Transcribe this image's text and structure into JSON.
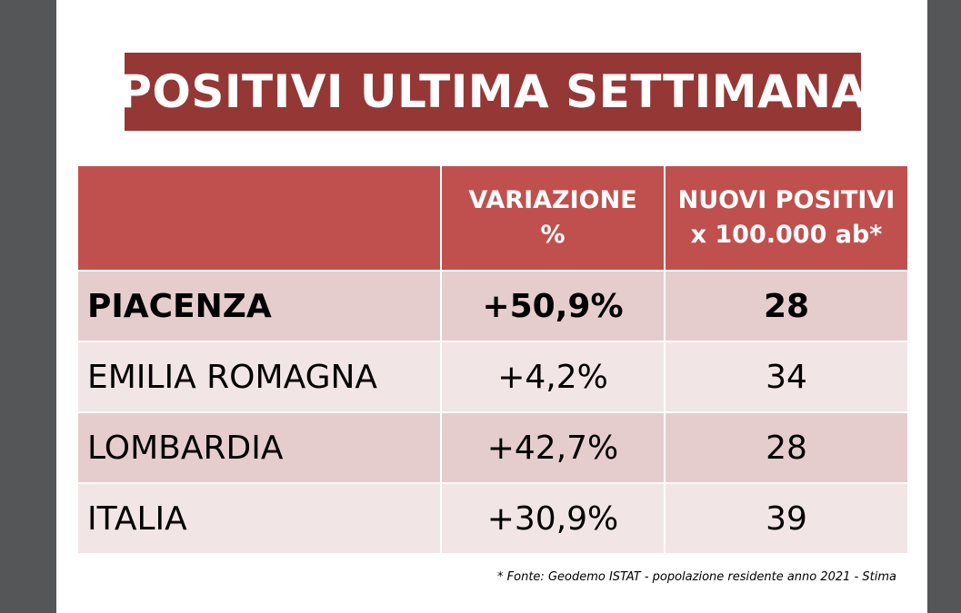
{
  "title": "POSITIVI ULTIMA SETTIMANA",
  "table": {
    "headers": {
      "region": "",
      "variation_line1": "VARIAZIONE",
      "variation_line2": "%",
      "new_cases_line1": "NUOVI POSITIVI",
      "new_cases_line2": "x 100.000 ab*"
    },
    "rows": [
      {
        "region": "PIACENZA",
        "variation": "+50,9%",
        "new_cases": "28"
      },
      {
        "region": "EMILIA ROMAGNA",
        "variation": "+4,2%",
        "new_cases": "34"
      },
      {
        "region": "LOMBARDIA",
        "variation": "+42,7%",
        "new_cases": "28"
      },
      {
        "region": "ITALIA",
        "variation": "+30,9%",
        "new_cases": "39"
      }
    ]
  },
  "footnote": "* Fonte: Geodemo ISTAT - popolazione residente anno 2021 - Stima",
  "colors": {
    "title_bg": "#953735",
    "header_bg": "#c0504d",
    "row_dark": "#e6cdcd",
    "row_light": "#f2e5e5",
    "viewer_bg": "#545658"
  }
}
